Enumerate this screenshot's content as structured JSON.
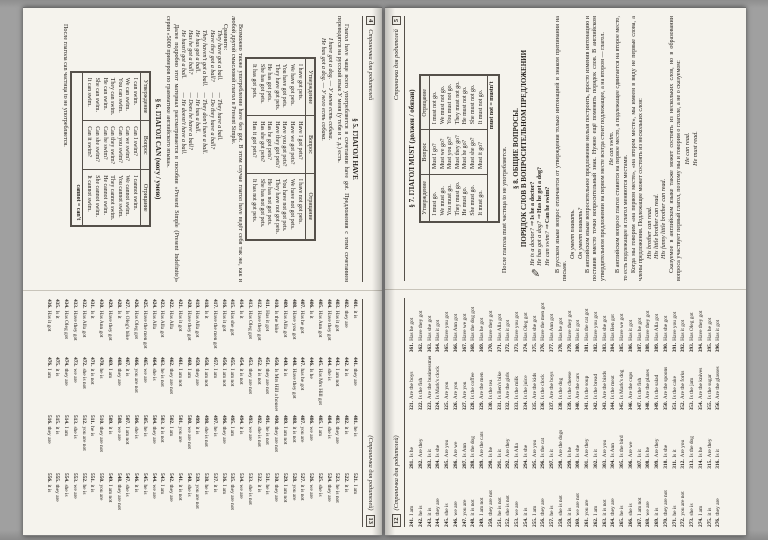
{
  "scan": {
    "background": "#9b9b9b",
    "page_background": "#f5f3ed"
  },
  "left_sheet": {
    "grammar_page": {
      "page_number": "4",
      "running_title": "Страничка для родителей",
      "s5": {
        "title": "§ 5. ГЛАГОЛ HAVE",
        "intro": "Глагол have чаще всего употребляется в сочетании have got. Предложения с этим сочетанием переводятся на русский язык У меня (у тебя и т. д.) есть.",
        "examples": [
          "I have got a dog. — У меня есть собака.",
          "He has got a dog. — У него есть собака."
        ],
        "table": {
          "headers": [
            "Утверждение",
            "Вопрос",
            "Отрицание"
          ],
          "rows": [
            [
              "I have got pets.",
              "Have I got pets?",
              "I have not got pets."
            ],
            [
              "We have got pets.",
              "Have we got pets?",
              "We have not got pets."
            ],
            [
              "You have got pets.",
              "Have you got pets?",
              "You have not got pets."
            ],
            [
              "They have got pets.",
              "Have they got pets?",
              "They have not got pets."
            ],
            [
              "He has got pets.",
              "Has he got pets?",
              "He has not got pets."
            ],
            [
              "She has got pets.",
              "Has she got pets?",
              "She has not got pets."
            ],
            [
              "It has got pets.",
              "Has it got pets?",
              "It has not got pets."
            ]
          ]
        },
        "after_table": "Возможно также употребление have без got. В этом случае глагол have ведёт себя так же, как и любой другой смысловой глагол в Present Simple.",
        "compare_label": "Сравните:",
        "compare_left": [
          "They have got a ball.",
          "Have they got a ball?",
          "They haven't got a ball.",
          "He has got a ball.",
          "Has he got a ball?",
          "He hasn't got a ball."
        ],
        "compare_right": [
          "— They have a ball.",
          "— Do they have a ball?",
          "— They don't have a ball.",
          "— He has a ball.",
          "— Does he have a ball?",
          "— He doesn't have a ball."
        ],
        "further": "Далее подробно этот материал рассматривается в пособии «Present Simple (Present Indefinite)» серии «5000 примеров по грамматике английского языка»."
      },
      "s6": {
        "title": "§ 6. ГЛАГОЛ CAN (могу / умею)",
        "table": {
          "headers": [
            "Утверждение",
            "Вопрос",
            "Отрицание"
          ],
          "rows": [
            [
              "I can swim.",
              "Can I swim?",
              "I cannot swim."
            ],
            [
              "We can swim.",
              "Can we swim?",
              "We cannot swim."
            ],
            [
              "You can swim.",
              "Can you swim?",
              "You cannot swim."
            ],
            [
              "They can swim.",
              "Can they swim?",
              "They cannot swim."
            ],
            [
              "He can swim.",
              "Can he swim?",
              "He cannot swim."
            ],
            [
              "She can swim.",
              "Can she swim?",
              "She cannot swim."
            ],
            [
              "It can swim.",
              "Can it swim?",
              "It cannot swim."
            ]
          ],
          "footer": "cannot = can't"
        },
        "note": "После глагола can частица to не употребляется."
      }
    },
    "answers_page": {
      "page_number": "13",
      "running_title": "(Страничка для родителей)",
      "columns": [
        {
          "start": 401,
          "items": [
            "it is",
            "they are",
            "Has it got",
            "Have they got",
            "Has Ann got",
            "Is it",
            "Has he got",
            "Have you got",
            "Has Alla got",
            "Is the bike",
            "Has it got",
            "Have they got",
            "Has Oleg got",
            "Is it",
            "Has she got",
            "Has it got",
            "Have the men got",
            "Is it",
            "Has Alla got",
            "Have they got",
            "Has it got",
            "Has Alla",
            "Has Alla got",
            "Has Alla",
            "Have the men got",
            "Has Oleg got",
            "Is Oleg's bike",
            "Is it",
            "Have they got",
            "Has Ann got",
            "Is it",
            "Has Alla got",
            "Have they got",
            "Has Oleg got",
            "Is it",
            "Has it got"
          ]
        },
        {
          "start": 441,
          "items": [
            "they are",
            "it is",
            "I am not",
            "she is",
            "Has Mrs Hill got",
            "Is he",
            "has he got",
            "Have they got",
            "it is",
            "Is Mrs Hill a housewife",
            "they are not",
            "it is not",
            "they are not",
            "it is not",
            "I am not",
            "I am not",
            "I am",
            "I am not",
            "they are",
            "I am",
            "I am not",
            "they are not",
            "he is not",
            "she is",
            "we are",
            "you are not",
            "it is",
            "they are",
            "I am",
            "he is",
            "it is not",
            "she is not",
            "we are",
            "they are",
            "it is",
            "I am"
          ]
        },
        {
          "start": 481,
          "items": [
            "he is",
            "it is",
            "they are",
            "she is",
            "I am",
            "we are",
            "you are",
            "it is not",
            "I am not",
            "they are not",
            "he is not",
            "she is not",
            "we are",
            "it is",
            "I am",
            "they are",
            "he is",
            "she is not",
            "it is",
            "we are not",
            "you are",
            "I am",
            "it is not",
            "they are",
            "he is",
            "she is",
            "I am not",
            "we are",
            "it is",
            "they are not",
            "he is",
            "you are not",
            "she is",
            "I am",
            "it is",
            "they are"
          ]
        },
        {
          "start": 521,
          "items": [
            "I am",
            "it is",
            "he is not",
            "they are",
            "she is",
            "we are",
            "it is not",
            "you are",
            "I am not",
            "they are",
            "he is",
            "it is",
            "she is not",
            "we are",
            "they are not",
            "I am",
            "it is",
            "he is",
            "you are not",
            "she is",
            "it is not",
            "they are",
            "I am",
            "we are",
            "he is",
            "it is",
            "she is",
            "they are not",
            "I am not",
            "you are",
            "it is",
            "he is",
            "we are",
            "she is",
            "they are",
            "it is"
          ]
        }
      ]
    }
  },
  "right_sheet": {
    "answers_page": {
      "page_number": "12",
      "running_title": "(Страничка для родителей)",
      "columns": [
        {
          "start": 241,
          "items": [
            "I am",
            "he is",
            "it is",
            "they are",
            "she is",
            "we are",
            "you are",
            "it is not",
            "I am not",
            "they are not",
            "he is not",
            "she is not",
            "we are",
            "it is",
            "I am",
            "they are",
            "he is",
            "she is not",
            "it is",
            "we are not",
            "you are",
            "I am",
            "it is not",
            "they are",
            "he is",
            "she is",
            "I am not",
            "we are",
            "it is",
            "they are not",
            "he is",
            "you are not",
            "she is",
            "I am",
            "it is",
            "they are"
          ]
        },
        {
          "start": 281,
          "items": [
            "Is he",
            "Are they",
            "Is it",
            "Is she",
            "Are you",
            "Are we",
            "Is Ann",
            "Is the dog",
            "Are the cats",
            "Is he",
            "Is it",
            "Are they",
            "Is Alla",
            "Is she",
            "Are you",
            "Is the cat",
            "Is it",
            "Are the dogs",
            "Is he",
            "Is she",
            "Are they",
            "Is it",
            "Are you",
            "Is Ann",
            "Is the bird",
            "Are we",
            "Is it",
            "Is he",
            "Are they",
            "Is she",
            "Is it",
            "Are you",
            "Is the dog",
            "Is he",
            "Are they",
            "Is it"
          ]
        },
        {
          "start": 321,
          "items": [
            "Are the boys",
            "Is the fish",
            "Are the businessmen",
            "Is Mark's clock",
            "Are you",
            "Are you",
            "Are you",
            "Is the coffee",
            "Are the men",
            "Is the tea",
            "Is Ben's bike",
            "Are the girls",
            "Is the milk",
            "Is the juice",
            "Are the kids",
            "Is the clock",
            "Are the boys",
            "Is the dog",
            "Is the cheese",
            "Are the cars",
            "Is the soup",
            "Is the bread",
            "Are the birds",
            "Is the meat",
            "Is Mark's dog",
            "Are the cups",
            "Is the fish",
            "Are the plates",
            "Is the salad",
            "Are the spoons",
            "Is the cake",
            "Are the forks",
            "Is the jam",
            "Are the knives",
            "Is the sugar",
            "Are the glasses"
          ]
        },
        {
          "start": 361,
          "items": [
            "Has he got",
            "Have they got",
            "Has she got",
            "Has it got",
            "Have you got",
            "Has Ann got",
            "Have we got",
            "Has the dog got",
            "Has he got",
            "Have they got",
            "Has Alla got",
            "Has it got",
            "Have you got",
            "Has Oleg got",
            "Has she got",
            "Have the men got",
            "Has Ann got",
            "Has he got",
            "Have they got",
            "Has it got",
            "Has the cat got",
            "Have you got",
            "Has she got",
            "Has Ben got",
            "Have we got",
            "Has it got",
            "Has he got",
            "Have they got",
            "Has Alla got",
            "Has she got",
            "Have you got",
            "Has it got",
            "Has Oleg got",
            "Have they got",
            "Has he got",
            "Has it got"
          ]
        }
      ]
    },
    "grammar_page": {
      "page_number": "5",
      "running_title": "Страничка для родителей",
      "s7": {
        "title": "§ 7. ГЛАГОЛ MUST (должен / обязан)",
        "table": {
          "headers": [
            "Утверждение",
            "Вопрос",
            "Отрицание"
          ],
          "rows": [
            [
              "I must go.",
              "Must I go?",
              "I must not go."
            ],
            [
              "We must go.",
              "Must we go?",
              "We must not go."
            ],
            [
              "You must go.",
              "Must you go?",
              "You must not go."
            ],
            [
              "They must go.",
              "Must they go?",
              "They must not go."
            ],
            [
              "He must go.",
              "Must he go?",
              "He must not go."
            ],
            [
              "She must go.",
              "Must she go?",
              "She must not go."
            ],
            [
              "It must go.",
              "Must it go?",
              "It must not go."
            ]
          ],
          "footer": "must not = mustn't"
        },
        "note": "После глагола must частица to не употребляется."
      },
      "s8": {
        "title_line1": "§ 8. ОБЩИЕ ВОПРОСЫ.",
        "title_line2": "ПОРЯДОК СЛОВ В ВОПРОСИТЕЛЬНОМ ПРЕДЛОЖЕНИИ",
        "pencil_examples": [
          {
            "q": "He is a doctor? ⇒",
            "a": "Is he a doctor?"
          },
          {
            "q": "He has got a dog? ⇒",
            "a": "Has he got a dog?"
          },
          {
            "q": "He can swim? ⇒",
            "a": "Can he swim?"
          }
        ],
        "p1": "В русском языке вопрос отличается от утверждения только интонацией и знаком препинания на письме.",
        "ru_examples": [
          "Он умеет плавать.",
          "Он умеет плавать?"
        ],
        "p2": "В английском языке вопросительное предложение нельзя построить, просто изменив интонацию и поставив вместо точки вопросительный знак. Нужно ещё поменять порядок слов. В английском утвердительном предложении на первом месте всегда стоит подлежащее, а на втором — глагол.",
        "en_example1": "He can swim.",
        "p3": "В английском вопросе глагол ставится на первое место, а подлежащее сдвигается на второе место, то есть подлежащее и глагол меняются местами.",
        "p4": "Когда мы говорим «на первом месте», «на втором месте», мы имеем в виду не первые слова, а члены предложения. Подлежащее может состоять из нескольких слов:",
        "brother_examples": [
          "His brother can read.",
          "His little brother can read.",
          "His funny little brother can read."
        ],
        "p5": "Сказуемое в английском языке также может состоять из нескольких слов, но в образовании вопроса участвует первый глагол, поэтому мы и говорим о глаголе, а не о сказуемом:",
        "en_examples2": [
          "He can read.",
          "He must read."
        ]
      }
    }
  }
}
